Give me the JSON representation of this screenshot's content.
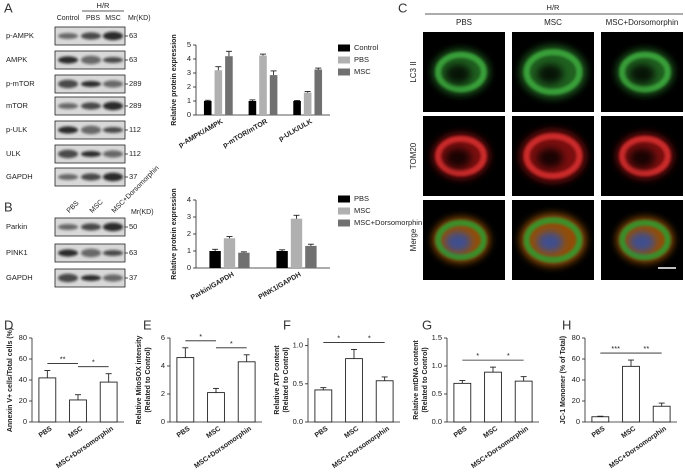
{
  "panel_labels": [
    "A",
    "B",
    "C",
    "D",
    "E",
    "F",
    "G",
    "H"
  ],
  "blot_a": {
    "header": "H/R",
    "lanes": [
      "Control",
      "PBS",
      "MSC"
    ],
    "mw_title": "Mr(KD)",
    "rows": [
      {
        "name": "p-AMPK",
        "mw": 63
      },
      {
        "name": "AMPK",
        "mw": 63
      },
      {
        "name": "p-mTOR",
        "mw": 289
      },
      {
        "name": "mTOR",
        "mw": 289
      },
      {
        "name": "p-ULK",
        "mw": 112
      },
      {
        "name": "ULK",
        "mw": 112
      },
      {
        "name": "GAPDH",
        "mw": 37
      }
    ]
  },
  "blot_b": {
    "lanes": [
      "PBS",
      "MSC",
      "MSC+Dorsomorphin"
    ],
    "mw_title": "Mr(KD)",
    "rows": [
      {
        "name": "Parkin",
        "mw": 50
      },
      {
        "name": "PINK1",
        "mw": 63
      },
      {
        "name": "GAPDH",
        "mw": 37
      }
    ]
  },
  "micro": {
    "header": "H/R",
    "columns": [
      "PBS",
      "MSC",
      "MSC+Dorsomorphin"
    ],
    "rows": [
      "LC3 II",
      "TOM20",
      "Merge"
    ]
  },
  "chart_data": [
    {
      "type": "bar",
      "ylabel": [
        "Relative protein expression"
      ],
      "categories": [
        "p-AMPK/AMPK",
        "p-mTOR/mTOR",
        "p-ULK/ULK"
      ],
      "series": [
        {
          "name": "Control",
          "color": "#000000",
          "values": [
            1,
            1,
            1
          ],
          "errors": [
            0.05,
            0.08,
            0.04
          ]
        },
        {
          "name": "PBS",
          "color": "#b0b0b0",
          "values": [
            3.2,
            4.25,
            1.6
          ],
          "errors": [
            0.25,
            0.1,
            0.08
          ]
        },
        {
          "name": "MSC",
          "color": "#707070",
          "values": [
            4.2,
            2.85,
            3.25
          ],
          "errors": [
            0.35,
            0.3,
            0.1
          ]
        }
      ],
      "ylim": [
        0,
        5
      ],
      "yticks": [
        0,
        1,
        2,
        3,
        4,
        5
      ]
    },
    {
      "type": "bar",
      "ylabel": [
        "Relative protein expression"
      ],
      "categories": [
        "Parkin/GAPDH",
        "PINK1/GAPDH"
      ],
      "series": [
        {
          "name": "PBS",
          "color": "#000000",
          "values": [
            1,
            1
          ],
          "errors": [
            0.1,
            0.07
          ]
        },
        {
          "name": "MSC",
          "color": "#b0b0b0",
          "values": [
            1.75,
            2.9
          ],
          "errors": [
            0.1,
            0.2
          ]
        },
        {
          "name": "MSC+Dorsomorphin",
          "color": "#707070",
          "values": [
            0.9,
            1.3
          ],
          "errors": [
            0.05,
            0.1
          ]
        }
      ],
      "ylim": [
        0,
        4
      ],
      "yticks": [
        0,
        1,
        2,
        3,
        4
      ]
    },
    {
      "type": "bar",
      "ylabel": [
        "Annexin V+ cells/Total cells (%)"
      ],
      "categories": [
        "PBS",
        "MSC",
        "MSC+Dorsomorphin"
      ],
      "values": [
        42,
        21,
        38
      ],
      "errors": [
        7,
        5,
        8
      ],
      "color": "#ffffff",
      "annotations": [
        "**",
        "*"
      ],
      "ylim": [
        0,
        80
      ],
      "yticks": [
        0,
        20,
        40,
        60,
        80
      ]
    },
    {
      "type": "bar",
      "ylabel": [
        "Relative MitoSOX intensity",
        "(Related to Control)"
      ],
      "categories": [
        "PBS",
        "MSC",
        "MSC+Dorsomorphin"
      ],
      "values": [
        4.6,
        2.1,
        4.3
      ],
      "errors": [
        0.7,
        0.3,
        0.5
      ],
      "color": "#ffffff",
      "annotations": [
        "*",
        "*"
      ],
      "ylim": [
        0,
        6
      ],
      "yticks": [
        0,
        2,
        4,
        6
      ]
    },
    {
      "type": "bar",
      "ylabel": [
        "Relative ATP content",
        "(Related to Control)"
      ],
      "categories": [
        "PBS",
        "MSC",
        "MSC+Dorsomorphin"
      ],
      "values": [
        0.42,
        0.83,
        0.54
      ],
      "errors": [
        0.03,
        0.12,
        0.05
      ],
      "color": "#ffffff",
      "annotations": [
        "*",
        "*"
      ],
      "ylim": [
        0,
        1.1
      ],
      "yticks": [
        {
          "value": 0,
          "label": "0.0"
        },
        {
          "value": 0.5,
          "label": "0.5"
        },
        {
          "value": 1,
          "label": "1.0"
        }
      ]
    },
    {
      "type": "bar",
      "ylabel": [
        "Relative mtDNA content",
        "(Related to Control)"
      ],
      "categories": [
        "PBS",
        "MSC",
        "MSC+Dorsomorphin"
      ],
      "values": [
        0.69,
        0.89,
        0.73
      ],
      "errors": [
        0.05,
        0.09,
        0.08
      ],
      "color": "#ffffff",
      "annotations": [
        "*",
        "*"
      ],
      "ylim": [
        0,
        1.5
      ],
      "yticks": [
        {
          "value": 0,
          "label": "0.0"
        },
        {
          "value": 0.5,
          "label": "0.5"
        },
        {
          "value": 1,
          "label": "1.0"
        },
        {
          "value": 1.5,
          "label": "1.5"
        }
      ]
    },
    {
      "type": "bar",
      "ylabel": [
        "JC-1 Monomer (% of Total)"
      ],
      "categories": [
        "PBS",
        "MSC",
        "MSC+Dorsomorphin"
      ],
      "values": [
        5,
        53,
        15
      ],
      "errors": [
        0.5,
        6,
        3
      ],
      "color": "#ffffff",
      "annotations": [
        "***",
        "**"
      ],
      "ylim": [
        0,
        80
      ],
      "yticks": [
        0,
        20,
        40,
        60,
        80
      ]
    }
  ]
}
